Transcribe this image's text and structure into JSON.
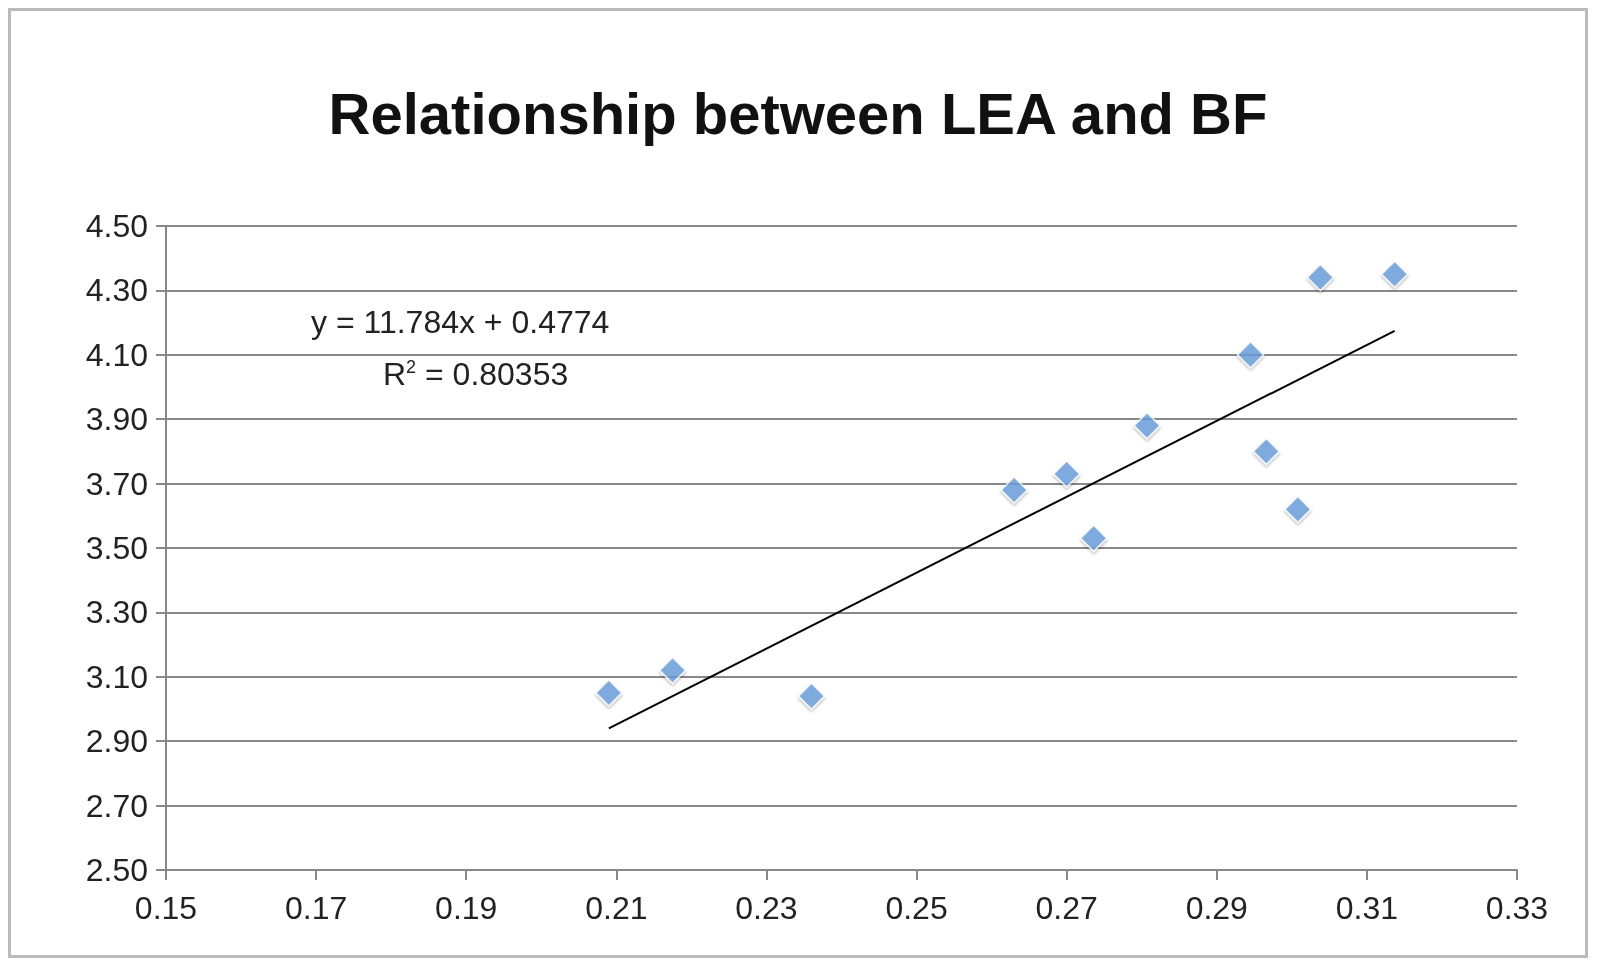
{
  "chart_data": {
    "type": "scatter",
    "title": "Relationship between LEA and BF",
    "series": [
      {
        "color": "#6a9fdc",
        "x": [
          0.209,
          0.2175,
          0.236,
          0.263,
          0.27,
          0.2736,
          0.2807,
          0.2945,
          0.2966,
          0.3008,
          0.3038,
          0.3137
        ],
        "values": [
          3.05,
          3.12,
          3.04,
          3.68,
          3.73,
          3.53,
          3.88,
          4.1,
          3.8,
          3.62,
          4.34,
          4.35
        ]
      },
      {
        "type": "line",
        "color": "#000000",
        "marker": "none",
        "x": [
          0.209,
          0.3137
        ],
        "values": [
          2.94,
          4.174
        ]
      }
    ],
    "marker": "diamond",
    "grid": "y",
    "xlim": [
      0.15,
      0.33
    ],
    "xticks": [
      {
        "value": 0.15,
        "label": "0.15"
      },
      {
        "value": 0.17,
        "label": "0.17"
      },
      {
        "value": 0.19,
        "label": "0.19"
      },
      {
        "value": 0.21,
        "label": "0.21"
      },
      {
        "value": 0.23,
        "label": "0.23"
      },
      {
        "value": 0.25,
        "label": "0.25"
      },
      {
        "value": 0.27,
        "label": "0.27"
      },
      {
        "value": 0.29,
        "label": "0.29"
      },
      {
        "value": 0.31,
        "label": "0.31"
      },
      {
        "value": 0.33,
        "label": "0.33"
      }
    ],
    "ylim": [
      2.5,
      4.5
    ],
    "yticks": [
      {
        "value": 2.5,
        "label": "2.50"
      },
      {
        "value": 2.7,
        "label": "2.70"
      },
      {
        "value": 2.9,
        "label": "2.90"
      },
      {
        "value": 3.1,
        "label": "3.10"
      },
      {
        "value": 3.3,
        "label": "3.30"
      },
      {
        "value": 3.5,
        "label": "3.50"
      },
      {
        "value": 3.7,
        "label": "3.70"
      },
      {
        "value": 3.9,
        "label": "3.90"
      },
      {
        "value": 4.1,
        "label": "4.10"
      },
      {
        "value": 4.3,
        "label": "4.30"
      },
      {
        "value": 4.5,
        "label": "4.50"
      }
    ],
    "annotations": [
      "y = 11.784x + 0.4774",
      "R$^{2}$ = 0.80353"
    ]
  }
}
